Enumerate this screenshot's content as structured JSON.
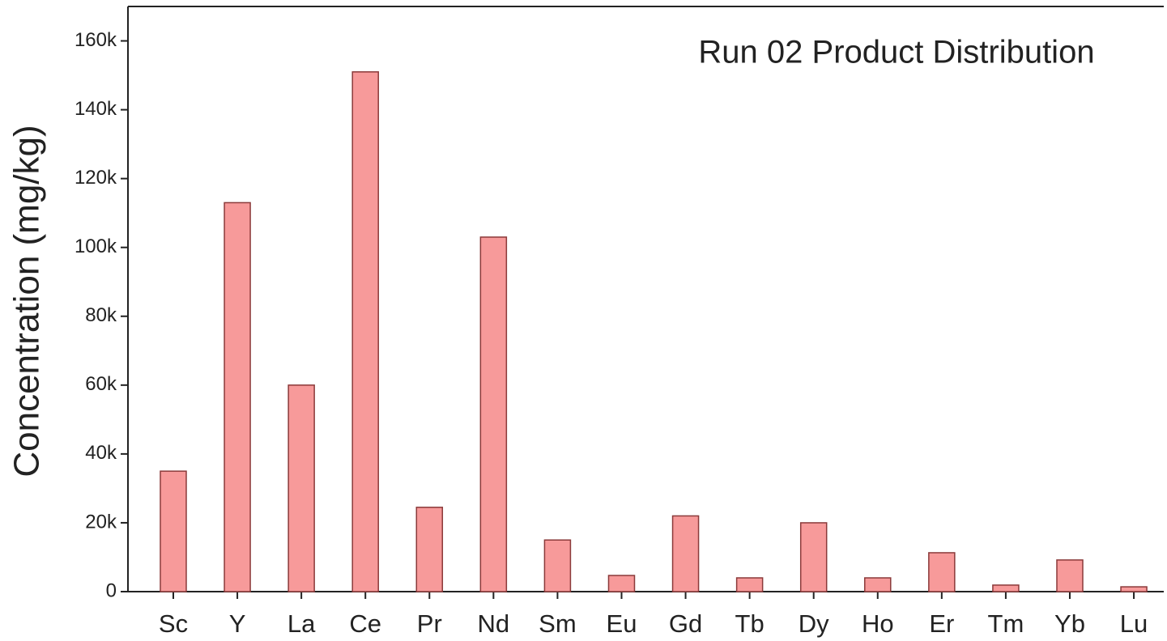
{
  "chart_data": {
    "type": "bar",
    "title": "Run 02 Product Distribution",
    "y_label": "Concentration (mg/kg)",
    "categories": [
      "Sc",
      "Y",
      "La",
      "Ce",
      "Pr",
      "Nd",
      "Sm",
      "Eu",
      "Gd",
      "Tb",
      "Dy",
      "Ho",
      "Er",
      "Tm",
      "Yb",
      "Lu"
    ],
    "values": [
      35000,
      113000,
      60000,
      151000,
      24500,
      103000,
      15000,
      4700,
      22000,
      4000,
      20000,
      4000,
      11300,
      1900,
      9200,
      1400
    ],
    "color": "#f79a9a",
    "edge_color": "#8b3a3a",
    "ylim": [
      0,
      170000
    ],
    "yticks": [
      0,
      {
        "value": 20000,
        "label": "20k"
      },
      {
        "value": 40000,
        "label": "40k"
      },
      {
        "value": 60000,
        "label": "60k"
      },
      {
        "value": 80000,
        "label": "80k"
      },
      {
        "value": 100000,
        "label": "100k"
      },
      {
        "value": 120000,
        "label": "120k"
      },
      {
        "value": 140000,
        "label": "140k"
      },
      {
        "value": 160000,
        "label": "160k"
      }
    ],
    "grid": false
  }
}
